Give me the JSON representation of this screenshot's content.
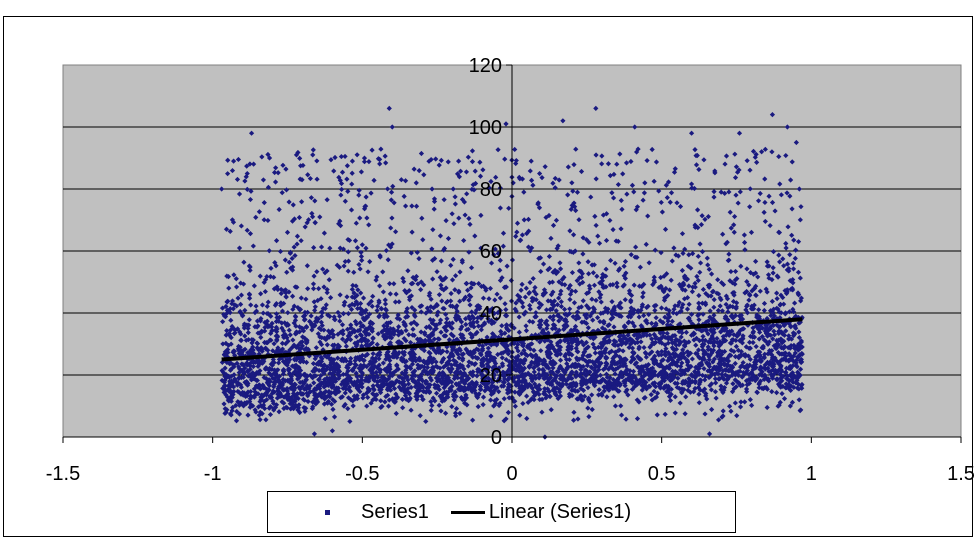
{
  "colors": {
    "plot_area": "#c0c0c0",
    "marker": "#1a1a80",
    "trendline": "#000000",
    "gridline": "#000000"
  },
  "chart_data": {
    "type": "scatter",
    "title": "",
    "xlabel": "",
    "ylabel": "",
    "xlim": [
      -1.5,
      1.5
    ],
    "ylim": [
      0,
      120
    ],
    "x_ticks": [
      -1.5,
      -1,
      -0.5,
      0,
      0.5,
      1,
      1.5
    ],
    "y_ticks": [
      0,
      20,
      40,
      60,
      80,
      100,
      120
    ],
    "x_tick_labels": [
      "-1.5",
      "-1",
      "-0.5",
      "0",
      "0.5",
      "1",
      "1.5"
    ],
    "y_tick_labels": [
      "0",
      "20",
      "40",
      "60",
      "80",
      "100",
      "120"
    ],
    "grid": "horizontal major gridlines",
    "legend_position": "bottom",
    "series": [
      {
        "name": "Series1",
        "marker": "diamond",
        "color": "#1a1a80",
        "n_points_approx": 6000,
        "x_range": [
          -0.97,
          0.97
        ],
        "y_range": [
          0,
          106
        ],
        "description": "dense cloud, heaviest between 0 and 40, thinning toward 100",
        "points": [
          [
            -0.97,
            80
          ],
          [
            -0.93,
            89
          ],
          [
            -0.87,
            98
          ],
          [
            -0.81,
            90
          ],
          [
            -0.72,
            91
          ],
          [
            -0.66,
            1
          ],
          [
            -0.6,
            2
          ],
          [
            -0.41,
            106
          ],
          [
            -0.4,
            100
          ],
          [
            -0.02,
            101
          ],
          [
            0.11,
            0
          ],
          [
            0.17,
            102
          ],
          [
            0.28,
            106
          ],
          [
            0.41,
            100
          ],
          [
            0.6,
            98
          ],
          [
            0.66,
            1
          ],
          [
            0.76,
            98
          ],
          [
            0.87,
            104
          ],
          [
            0.92,
            100
          ],
          [
            0.95,
            95
          ],
          [
            0.96,
            80
          ],
          [
            0.93,
            10
          ],
          [
            0.2,
            82
          ],
          [
            -0.5,
            62
          ],
          [
            0.1,
            8
          ],
          [
            -0.2,
            72
          ],
          [
            0.35,
            88
          ],
          [
            -0.75,
            66
          ],
          [
            0.5,
            48
          ],
          [
            0.8,
            66
          ]
        ]
      },
      {
        "name": "Linear (Series1)",
        "type": "trendline",
        "color": "#000000",
        "x": [
          -0.97,
          0.97
        ],
        "y": [
          25,
          38
        ]
      }
    ]
  },
  "legend": {
    "series1": "Series1",
    "linear": "Linear (Series1)"
  }
}
